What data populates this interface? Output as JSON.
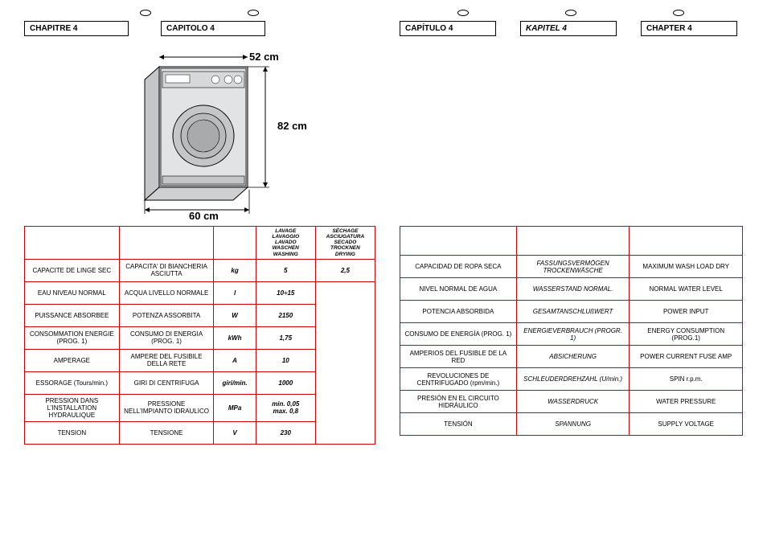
{
  "chapters": {
    "fr": "CHAPITRE 4",
    "it": "CAPITOLO 4",
    "es": "CAPÍTULO 4",
    "de": "KAPITEL 4",
    "en": "CHAPTER 4"
  },
  "dims": {
    "width": "52 cm",
    "height": "82 cm",
    "depth": "60 cm"
  },
  "machine": {
    "body_fill": "#d7d8da",
    "body_stroke": "#000000",
    "door_fill": "#c5c6c8",
    "drum_fill": "#b9babc",
    "drum_dark": "#a9aaac"
  },
  "leftTable": {
    "hdr_wash": "LAVAGE\nLAVAGGIO\nLAVADO\nWASCHEN\nWASHING",
    "hdr_dry": "SÉCHAGE\nASCIUGATURA\nSECADO\nTROCKNEN\nDRYING",
    "rows": [
      {
        "fr": "CAPACITE DE LINGE SEC",
        "it": "CAPACITA' DI BIANCHERIA ASCIUTTA",
        "unit": "kg",
        "wash": "5",
        "dry": "2,5"
      },
      {
        "fr": "EAU NIVEAU NORMAL",
        "it": "ACQUA LIVELLO NORMALE",
        "unit": "l",
        "wash": "10÷15",
        "dry": ""
      },
      {
        "fr": "PUISSANCE ABSORBEE",
        "it": "POTENZA ASSORBITA",
        "unit": "W",
        "wash": "2150",
        "dry": ""
      },
      {
        "fr": "CONSOMMATION ENERGIE (PROG. 1)",
        "it": "CONSUMO DI ENERGIA (PROG. 1)",
        "unit": "kWh",
        "wash": "1,75",
        "dry": ""
      },
      {
        "fr": "AMPERAGE",
        "it": "AMPERE DEL FUSIBILE DELLA RETE",
        "unit": "A",
        "wash": "10",
        "dry": ""
      },
      {
        "fr": "ESSORAGE (Tours/min.)",
        "it": "GIRI DI CENTRIFUGA",
        "unit": "giri/min.",
        "wash": "1000",
        "dry": ""
      },
      {
        "fr": "PRESSION DANS L'INSTALLATION HYDRAULIQUE",
        "it": "PRESSIONE NELL'IMPIANTO IDRAULICO",
        "unit": "MPa",
        "wash": "min. 0,05\nmax. 0,8",
        "dry": ""
      },
      {
        "fr": "TENSION",
        "it": "TENSIONE",
        "unit": "V",
        "wash": "230",
        "dry": ""
      }
    ]
  },
  "rightTable": {
    "rows": [
      {
        "es": "CAPACIDAD DE ROPA SECA",
        "de": "FASSUNGSVERMÖGEN TROCKENWÄSCHE",
        "en": "MAXIMUM WASH LOAD DRY"
      },
      {
        "es": "NIVEL NORMAL DE AGUA",
        "de": "WASSERSTAND NORMAL.",
        "en": "NORMAL WATER LEVEL"
      },
      {
        "es": "POTENCIA ABSORBIDA",
        "de": "GESAMTANSCHLUßWERT",
        "en": "POWER INPUT"
      },
      {
        "es": "CONSUMO DE ENERGÍA (PROG. 1)",
        "de": "ENERGIEVERBRAUCH (PROGR. 1)",
        "en": "ENERGY CONSUMPTION (PROG.1)"
      },
      {
        "es": "AMPERIOS DEL FUSIBLE DE LA RED",
        "de": "ABSICHERUNG",
        "en": "POWER CURRENT FUSE AMP"
      },
      {
        "es": "REVOLUCIONES DE CENTRIFUGADO (rpm/min.)",
        "de": "SCHLEUDERDREHZAHL (U/min.)",
        "en": "SPIN r.p.m."
      },
      {
        "es": "PRESIÓN EN EL CIRCUITO HIDRÁULICO",
        "de": "WASSERDRUCK",
        "en": "WATER PRESSURE"
      },
      {
        "es": "TENSIÓN",
        "de": "SPANNUNG",
        "en": "SUPPLY VOLTAGE"
      }
    ]
  },
  "colors": {
    "table_border": "#d40000"
  }
}
